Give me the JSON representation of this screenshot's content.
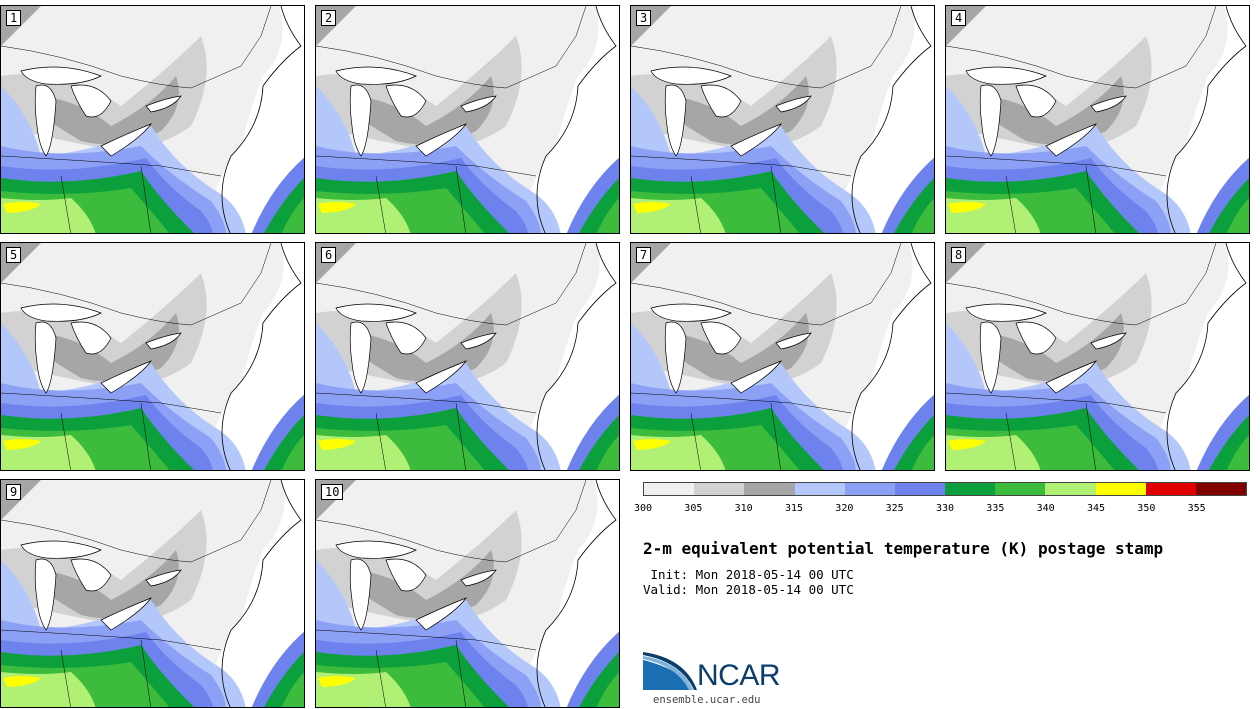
{
  "panels": [
    "1",
    "2",
    "3",
    "4",
    "5",
    "6",
    "7",
    "8",
    "9",
    "10"
  ],
  "colorbar": {
    "colors": [
      "#f0f0f0",
      "#d2d2d2",
      "#a6a6a6",
      "#b4c7fb",
      "#8ca0f5",
      "#6e82ee",
      "#0ca03c",
      "#3cbb3c",
      "#b0f074",
      "#ffff00",
      "#e00000",
      "#800000"
    ],
    "ticks": [
      "300",
      "305",
      "310",
      "315",
      "320",
      "325",
      "330",
      "335",
      "340",
      "345",
      "350",
      "355"
    ]
  },
  "title": "2-m equivalent potential temperature (K) postage stamp",
  "init": " Init: Mon 2018-05-14 00 UTC",
  "valid": "Valid: Mon 2018-05-14 00 UTC",
  "logo": {
    "name": "NCAR",
    "url_text": "ensemble.ucar.edu"
  }
}
